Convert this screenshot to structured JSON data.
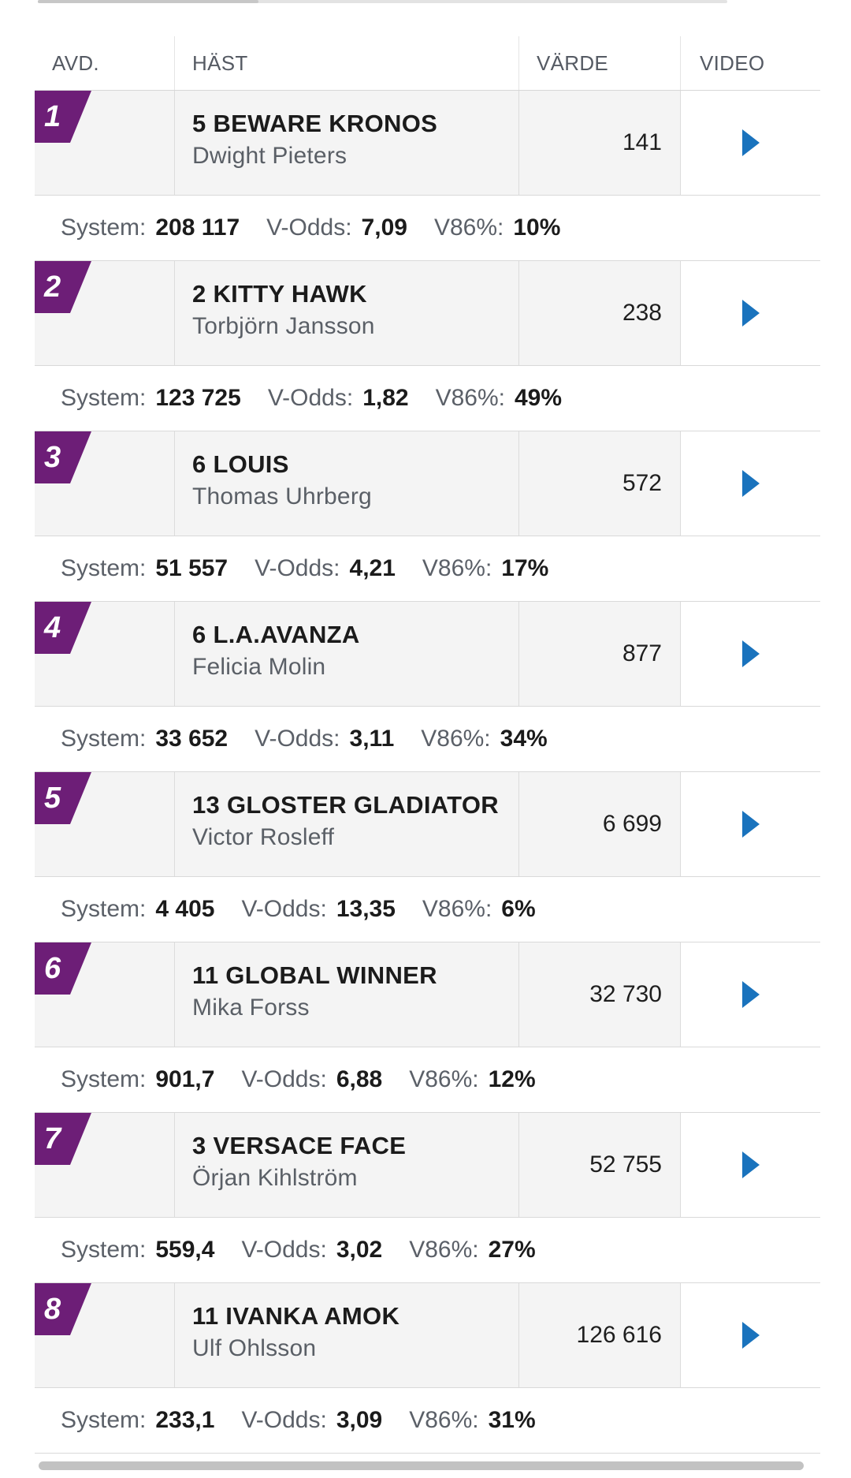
{
  "headers": {
    "avd": "AVD.",
    "hast": "HÄST",
    "varde": "VÄRDE",
    "video": "VIDEO"
  },
  "labels": {
    "system": "System:",
    "vodds": "V-Odds:",
    "v86": "V86%:"
  },
  "colors": {
    "badge": "#6d1e77",
    "play": "#1a73bd",
    "row_bg": "#f4f4f4"
  },
  "icons": {
    "video": "play-triangle"
  },
  "races": [
    {
      "avd": "1",
      "horse": "5 BEWARE KRONOS",
      "driver": "Dwight Pieters",
      "value": "141",
      "system": "208 117",
      "vodds": "7,09",
      "v86": "10%"
    },
    {
      "avd": "2",
      "horse": "2 KITTY HAWK",
      "driver": "Torbjörn Jansson",
      "value": "238",
      "system": "123 725",
      "vodds": "1,82",
      "v86": "49%"
    },
    {
      "avd": "3",
      "horse": "6 LOUIS",
      "driver": "Thomas Uhrberg",
      "value": "572",
      "system": "51 557",
      "vodds": "4,21",
      "v86": "17%"
    },
    {
      "avd": "4",
      "horse": "6 L.A.AVANZA",
      "driver": "Felicia Molin",
      "value": "877",
      "system": "33 652",
      "vodds": "3,11",
      "v86": "34%"
    },
    {
      "avd": "5",
      "horse": "13 GLOSTER GLADIATOR",
      "driver": "Victor Rosleff",
      "value": "6 699",
      "system": "4 405",
      "vodds": "13,35",
      "v86": "6%"
    },
    {
      "avd": "6",
      "horse": "11 GLOBAL WINNER",
      "driver": "Mika Forss",
      "value": "32 730",
      "system": "901,7",
      "vodds": "6,88",
      "v86": "12%"
    },
    {
      "avd": "7",
      "horse": "3 VERSACE FACE",
      "driver": "Örjan Kihlström",
      "value": "52 755",
      "system": "559,4",
      "vodds": "3,02",
      "v86": "27%"
    },
    {
      "avd": "8",
      "horse": "11 IVANKA AMOK",
      "driver": "Ulf Ohlsson",
      "value": "126 616",
      "system": "233,1",
      "vodds": "3,09",
      "v86": "31%"
    }
  ]
}
